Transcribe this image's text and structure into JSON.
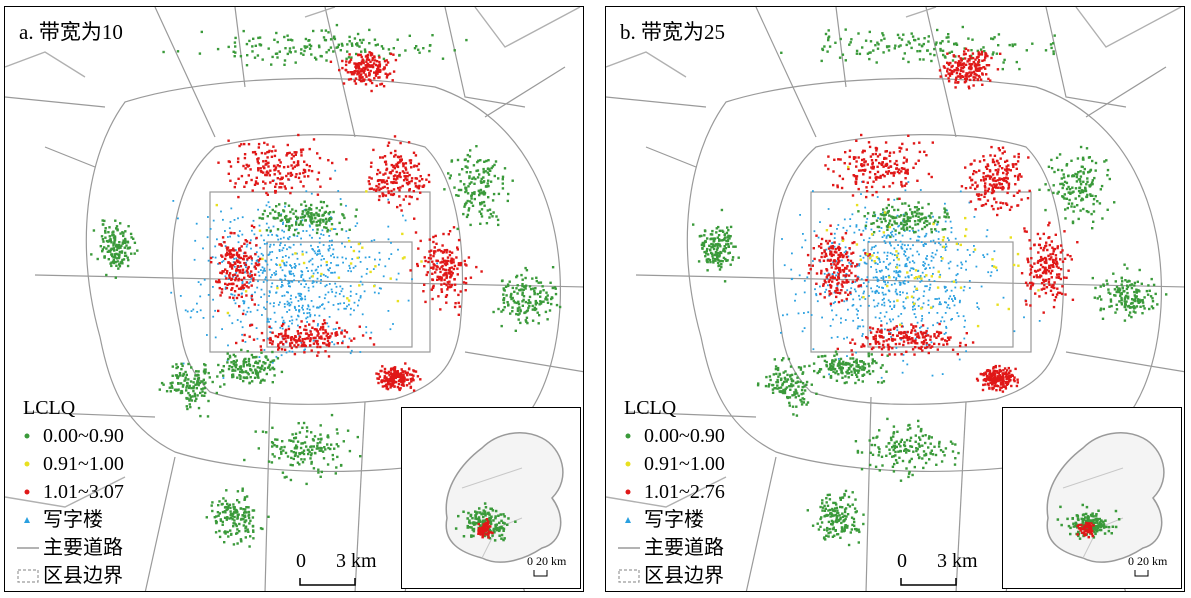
{
  "panels": [
    {
      "id": "a",
      "title": "a. 带宽为10",
      "legend": {
        "title": "LCLQ",
        "classes": [
          {
            "label": "0.00~0.90",
            "color": "#3a9a3a"
          },
          {
            "label": "0.91~1.00",
            "color": "#e8e020"
          },
          {
            "label": "1.01~3.07",
            "color": "#e01818"
          }
        ],
        "office_label": "写字楼",
        "road_label": "主要道路",
        "boundary_label": "区县边界"
      },
      "scale": {
        "zero": "0",
        "value": "3 km"
      },
      "inset_scale": {
        "zero": "0",
        "value": "20 km"
      }
    },
    {
      "id": "b",
      "title": "b. 带宽为25",
      "legend": {
        "title": "LCLQ",
        "classes": [
          {
            "label": "0.00~0.90",
            "color": "#3a9a3a"
          },
          {
            "label": "0.91~1.00",
            "color": "#e8e020"
          },
          {
            "label": "1.01~2.76",
            "color": "#e01818"
          }
        ],
        "office_label": "写字楼",
        "road_label": "主要道路",
        "boundary_label": "区县边界"
      },
      "scale": {
        "zero": "0",
        "value": "3 km"
      },
      "inset_scale": {
        "zero": "0",
        "value": "20 km"
      }
    }
  ],
  "colors": {
    "green": "#3a9a3a",
    "yellow": "#e8e020",
    "red": "#e01818",
    "blue": "#2aa0e0",
    "road": "#9a9a9a",
    "boundary": "#b0b0b0"
  }
}
